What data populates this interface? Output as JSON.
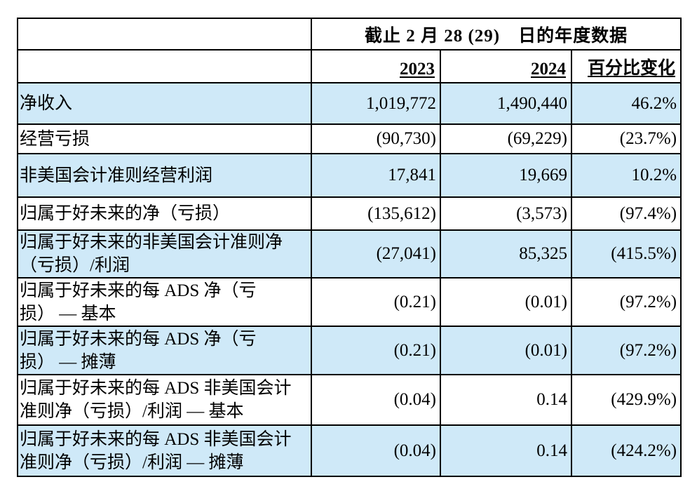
{
  "table": {
    "period_header": "截止 2 月 28 (29)　日的年度数据",
    "columns": {
      "y2023": "2023",
      "y2024": "2024",
      "pct": "百分比变化"
    },
    "colors": {
      "highlight_row": "#cfe9f8",
      "border": "#000000",
      "text": "#000000"
    },
    "rows": [
      {
        "label": "净收入",
        "v2023": "1,019,772",
        "v2024": "1,490,440",
        "pct": "46.2%"
      },
      {
        "label": "经营亏损",
        "v2023": "(90,730)",
        "v2024": "(69,229)",
        "pct": "(23.7%)"
      },
      {
        "label": "非美国会计准则经营利润",
        "v2023": "17,841",
        "v2024": "19,669",
        "pct": "10.2%"
      },
      {
        "label": "归属于好未来的净（亏损）",
        "v2023": "(135,612)",
        "v2024": "(3,573)",
        "pct": "(97.4%)"
      },
      {
        "label": "归属于好未来的非美国会计准则净\n（亏损）/利润",
        "v2023": "(27,041)",
        "v2024": "85,325",
        "pct": "(415.5%)"
      },
      {
        "label": "归属于好未来的每 ADS 净（亏\n损） — 基本",
        "v2023": "(0.21)",
        "v2024": "(0.01)",
        "pct": "(97.2%)"
      },
      {
        "label": "归属于好未来的每 ADS 净（亏\n损） — 摊薄",
        "v2023": "(0.21)",
        "v2024": "(0.01)",
        "pct": "(97.2%)"
      },
      {
        "label": "归属于好未来的每 ADS 非美国会计\n准则净（亏损）/利润 — 基本",
        "v2023": "(0.04)",
        "v2024": "0.14",
        "pct": "(429.9%)"
      },
      {
        "label": "归属于好未来的每 ADS 非美国会计\n准则净（亏损）/利润 — 摊薄",
        "v2023": "(0.04)",
        "v2024": "0.14",
        "pct": "(424.2%)"
      }
    ]
  }
}
